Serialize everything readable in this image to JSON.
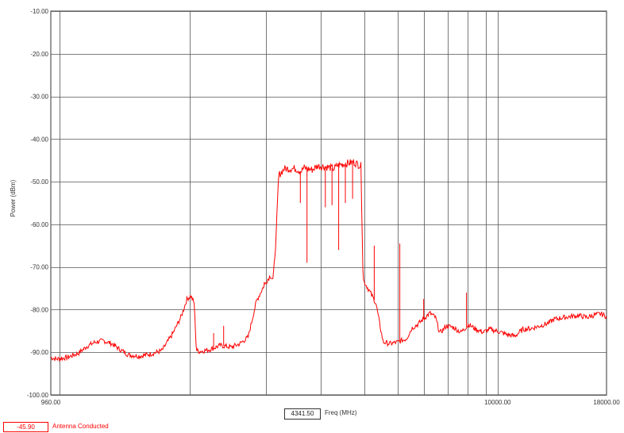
{
  "chart_data": {
    "type": "line",
    "ylabel": "Power (dBm)",
    "xlabel": "Freq (MHz)",
    "ylim": [
      -100,
      -10
    ],
    "y_ticks": [
      "-10.00",
      "-20.00",
      "-30.00",
      "-40.00",
      "-50.00",
      "-60.00",
      "-70.00",
      "-80.00",
      "-90.00",
      "-100.00"
    ],
    "x_tick_labels": [
      {
        "value": 960,
        "label": "960.00"
      },
      {
        "value": 10000,
        "label": "10000.00"
      },
      {
        "value": 18000,
        "label": "18000.00"
      }
    ],
    "grid": true,
    "line_color": "#ff0000",
    "cursor_value": "4341.50",
    "series": [
      {
        "name": "Antenna Conducted",
        "readout": "-45.90",
        "values": [
          [
            0.0,
            -91.2
          ],
          [
            0.01,
            -91.6
          ],
          [
            0.03,
            -91.2
          ],
          [
            0.05,
            -90.2
          ],
          [
            0.065,
            -88.6
          ],
          [
            0.08,
            -87.6
          ],
          [
            0.095,
            -87.3
          ],
          [
            0.11,
            -88.0
          ],
          [
            0.125,
            -89.4
          ],
          [
            0.14,
            -90.6
          ],
          [
            0.16,
            -90.9
          ],
          [
            0.18,
            -90.4
          ],
          [
            0.2,
            -89.6
          ],
          [
            0.22,
            -85.5
          ],
          [
            0.235,
            -81.5
          ],
          [
            0.245,
            -77.5
          ],
          [
            0.252,
            -76.8
          ],
          [
            0.258,
            -78.5
          ],
          [
            0.262,
            -89.6
          ],
          [
            0.268,
            -89.8
          ],
          [
            0.285,
            -89.4
          ],
          [
            0.305,
            -88.4
          ],
          [
            0.325,
            -88.8
          ],
          [
            0.34,
            -88.0
          ],
          [
            0.355,
            -86.5
          ],
          [
            0.37,
            -78.0
          ],
          [
            0.385,
            -74.0
          ],
          [
            0.395,
            -72.0
          ],
          [
            0.4,
            -73.0
          ],
          [
            0.405,
            -64.0
          ],
          [
            0.41,
            -48.5
          ],
          [
            0.42,
            -47.0
          ],
          [
            0.44,
            -46.9
          ],
          [
            0.45,
            -47.6
          ],
          [
            0.455,
            -46.8
          ],
          [
            0.47,
            -47.2
          ],
          [
            0.48,
            -46.3
          ],
          [
            0.5,
            -46.6
          ],
          [
            0.51,
            -47.0
          ],
          [
            0.515,
            -46.2
          ],
          [
            0.53,
            -45.8
          ],
          [
            0.545,
            -45.4
          ],
          [
            0.558,
            -46.3
          ],
          [
            0.562,
            -73.0
          ],
          [
            0.575,
            -76.0
          ],
          [
            0.585,
            -78.5
          ],
          [
            0.592,
            -83.5
          ],
          [
            0.598,
            -87.6
          ],
          [
            0.61,
            -88.0
          ],
          [
            0.625,
            -87.6
          ],
          [
            0.64,
            -86.8
          ],
          [
            0.65,
            -84.3
          ],
          [
            0.66,
            -83.5
          ],
          [
            0.672,
            -82.0
          ],
          [
            0.682,
            -80.8
          ],
          [
            0.692,
            -81.8
          ],
          [
            0.7,
            -85.5
          ],
          [
            0.712,
            -83.8
          ],
          [
            0.725,
            -84.2
          ],
          [
            0.738,
            -85.3
          ],
          [
            0.752,
            -83.5
          ],
          [
            0.765,
            -84.6
          ],
          [
            0.778,
            -85.3
          ],
          [
            0.79,
            -84.6
          ],
          [
            0.805,
            -85.1
          ],
          [
            0.82,
            -85.8
          ],
          [
            0.835,
            -86.2
          ],
          [
            0.85,
            -84.6
          ],
          [
            0.865,
            -84.4
          ],
          [
            0.88,
            -83.8
          ],
          [
            0.895,
            -83.2
          ],
          [
            0.905,
            -82.3
          ],
          [
            0.92,
            -81.9
          ],
          [
            0.935,
            -81.6
          ],
          [
            0.95,
            -81.4
          ],
          [
            0.965,
            -81.8
          ],
          [
            0.98,
            -81.2
          ],
          [
            0.99,
            -81.0
          ],
          [
            1.0,
            -81.6
          ]
        ],
        "spikes": [
          [
            0.293,
            -85.5
          ],
          [
            0.311,
            -83.8
          ],
          [
            0.384,
            -73.5
          ],
          [
            0.449,
            -55.0
          ],
          [
            0.461,
            -69.0
          ],
          [
            0.494,
            -56.0
          ],
          [
            0.506,
            -55.5
          ],
          [
            0.518,
            -66.0
          ],
          [
            0.53,
            -55.0
          ],
          [
            0.543,
            -54.0
          ],
          [
            0.582,
            -65.0
          ],
          [
            0.628,
            -64.5
          ],
          [
            0.643,
            -86.0
          ],
          [
            0.671,
            -77.5
          ],
          [
            0.748,
            -76.0
          ]
        ]
      }
    ]
  }
}
